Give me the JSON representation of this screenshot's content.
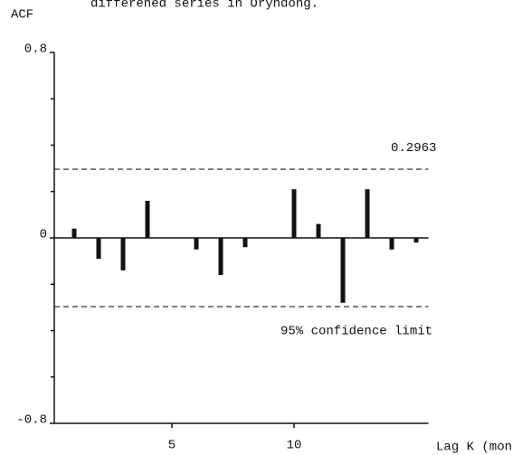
{
  "chart_data": {
    "type": "bar",
    "title": "differened series in Oryndong.",
    "y_label": "ACF",
    "x_label": "Lag K (month)",
    "x": [
      1,
      2,
      3,
      4,
      5,
      6,
      7,
      8,
      9,
      10,
      11,
      12,
      13,
      14,
      15
    ],
    "values": [
      0.04,
      -0.09,
      -0.14,
      0.16,
      0,
      -0.05,
      -0.16,
      -0.04,
      0,
      0.21,
      0.06,
      -0.28,
      0.21,
      -0.05,
      -0.02
    ],
    "color": "#111111",
    "ylim": [
      -0.8,
      0.8
    ],
    "yticks": [
      -0.8,
      0,
      0.8
    ],
    "minor_yticks": [
      -0.6,
      -0.4,
      -0.2,
      0.2,
      0.4,
      0.6
    ],
    "xlim": [
      0,
      15.5
    ],
    "xticks": [
      5,
      10
    ],
    "confidence_limit": 0.2963,
    "confidence_label": "95% confidence limit",
    "grid": false
  }
}
